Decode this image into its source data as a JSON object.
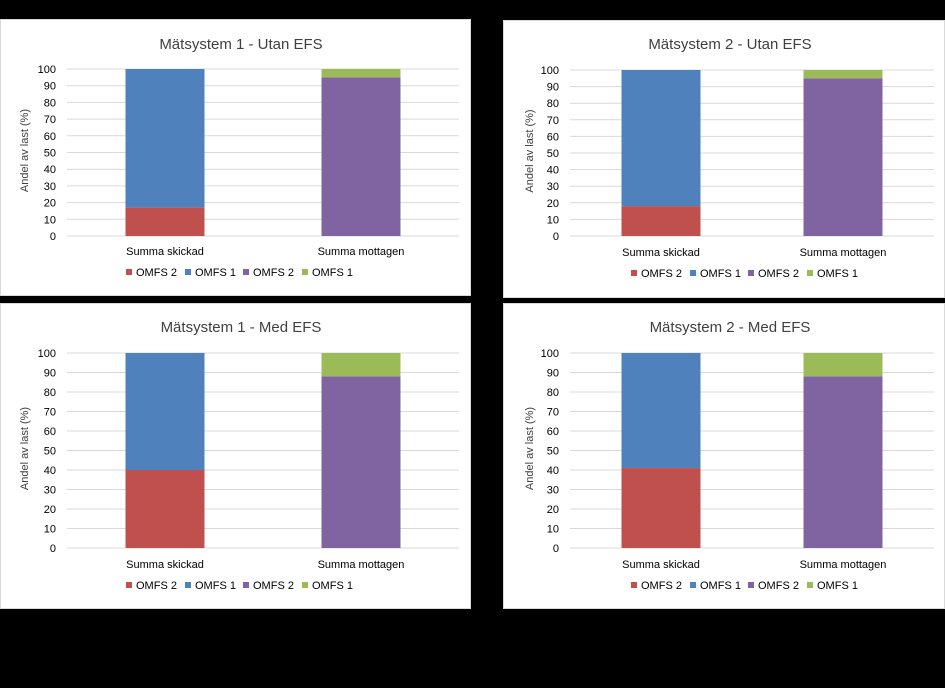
{
  "chart_data": [
    {
      "type": "bar",
      "stacked": true,
      "title": "Mätsystem 1 - Utan EFS",
      "ylabel": "Andel av last (%)",
      "ylim": [
        0,
        100
      ],
      "yticks": [
        0,
        10,
        20,
        30,
        40,
        50,
        60,
        70,
        80,
        90,
        100
      ],
      "categories": [
        "Summa skickad",
        "Summa mottagen"
      ],
      "series": [
        {
          "name": "OMFS 2",
          "color": "#c0504d",
          "values": [
            17,
            0
          ]
        },
        {
          "name": "OMFS 1",
          "color": "#4f81bd",
          "values": [
            83,
            0
          ]
        },
        {
          "name": "OMFS 2",
          "color": "#8064a2",
          "values": [
            0,
            95
          ]
        },
        {
          "name": "OMFS 1",
          "color": "#9bbb59",
          "values": [
            0,
            5
          ]
        }
      ],
      "grid": true,
      "legend": "bottom"
    },
    {
      "type": "bar",
      "stacked": true,
      "title": "Mätsystem 2 - Utan EFS",
      "ylabel": "Andel av last (%)",
      "ylim": [
        0,
        100
      ],
      "yticks": [
        0,
        10,
        20,
        30,
        40,
        50,
        60,
        70,
        80,
        90,
        100
      ],
      "categories": [
        "Summa skickad",
        "Summa mottagen"
      ],
      "series": [
        {
          "name": "OMFS 2",
          "color": "#c0504d",
          "values": [
            18,
            0
          ]
        },
        {
          "name": "OMFS 1",
          "color": "#4f81bd",
          "values": [
            82,
            0
          ]
        },
        {
          "name": "OMFS 2",
          "color": "#8064a2",
          "values": [
            0,
            95
          ]
        },
        {
          "name": "OMFS 1",
          "color": "#9bbb59",
          "values": [
            0,
            5
          ]
        }
      ],
      "grid": true,
      "legend": "bottom"
    },
    {
      "type": "bar",
      "stacked": true,
      "title": "Mätsystem 1 - Med EFS",
      "ylabel": "Andel av last (%)",
      "ylim": [
        0,
        100
      ],
      "yticks": [
        0,
        10,
        20,
        30,
        40,
        50,
        60,
        70,
        80,
        90,
        100
      ],
      "categories": [
        "Summa skickad",
        "Summa mottagen"
      ],
      "series": [
        {
          "name": "OMFS 2",
          "color": "#c0504d",
          "values": [
            40,
            0
          ]
        },
        {
          "name": "OMFS 1",
          "color": "#4f81bd",
          "values": [
            60,
            0
          ]
        },
        {
          "name": "OMFS 2",
          "color": "#8064a2",
          "values": [
            0,
            88
          ]
        },
        {
          "name": "OMFS 1",
          "color": "#9bbb59",
          "values": [
            0,
            12
          ]
        }
      ],
      "grid": true,
      "legend": "bottom"
    },
    {
      "type": "bar",
      "stacked": true,
      "title": "Mätsystem 2 - Med EFS",
      "ylabel": "Andel av last (%)",
      "ylim": [
        0,
        100
      ],
      "yticks": [
        0,
        10,
        20,
        30,
        40,
        50,
        60,
        70,
        80,
        90,
        100
      ],
      "categories": [
        "Summa skickad",
        "Summa mottagen"
      ],
      "series": [
        {
          "name": "OMFS 2",
          "color": "#c0504d",
          "values": [
            41,
            0
          ]
        },
        {
          "name": "OMFS 1",
          "color": "#4f81bd",
          "values": [
            59,
            0
          ]
        },
        {
          "name": "OMFS 2",
          "color": "#8064a2",
          "values": [
            0,
            88
          ]
        },
        {
          "name": "OMFS 1",
          "color": "#9bbb59",
          "values": [
            0,
            12
          ]
        }
      ],
      "grid": true,
      "legend": "bottom"
    }
  ]
}
